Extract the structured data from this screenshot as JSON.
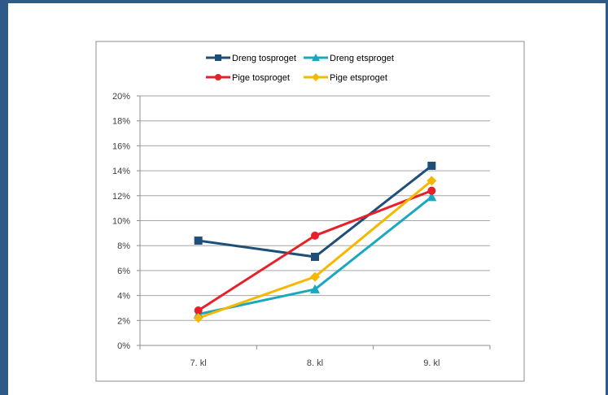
{
  "chart_data": {
    "type": "line",
    "title": "",
    "xlabel": "",
    "ylabel": "",
    "categories": [
      "7. kl",
      "8. kl",
      "9. kl"
    ],
    "y_ticks": [
      "0%",
      "2%",
      "4%",
      "6%",
      "8%",
      "10%",
      "12%",
      "14%",
      "16%",
      "18%",
      "20%"
    ],
    "ylim": [
      0,
      20
    ],
    "y_unit": "%",
    "grid": true,
    "legend_position": "top",
    "series": [
      {
        "name": "Dreng tosproget",
        "values": [
          8.4,
          7.1,
          14.4
        ],
        "color": "#1f4e79",
        "marker": "square"
      },
      {
        "name": "Dreng etsproget",
        "values": [
          2.5,
          4.5,
          11.9
        ],
        "color": "#1aa7c0",
        "marker": "triangle"
      },
      {
        "name": "Pige tosproget",
        "values": [
          2.8,
          8.8,
          12.4
        ],
        "color": "#e8202a",
        "marker": "circle"
      },
      {
        "name": "Pige etsproget",
        "values": [
          2.2,
          5.5,
          13.2
        ],
        "color": "#f5b800",
        "marker": "diamond"
      }
    ]
  }
}
